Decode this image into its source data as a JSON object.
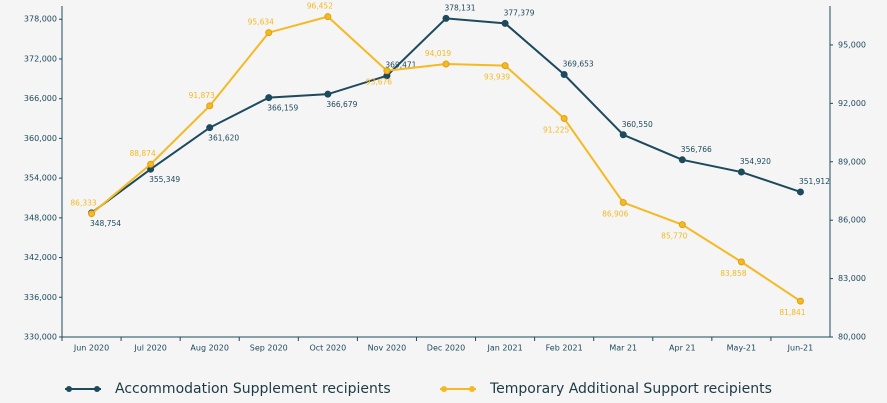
{
  "chart_data": {
    "type": "line",
    "categories": [
      "Jun 2020",
      "Jul 2020",
      "Aug 2020",
      "Sep 2020",
      "Oct 2020",
      "Nov 2020",
      "Dec 2020",
      "Jan 2021",
      "Feb 2021",
      "Mar 21",
      "Apr 21",
      "May-21",
      "Jun-21"
    ],
    "series": [
      {
        "name": "Accommodation Supplement recipients",
        "color": "#1d4a5c",
        "axis": "y",
        "values": [
          348754,
          355349,
          361620,
          366159,
          366679,
          369471,
          378131,
          377379,
          369653,
          360550,
          356766,
          354920,
          351912
        ],
        "value_labels": [
          "348,754",
          "355,349",
          "361,620",
          "366,159",
          "366,679",
          "369,471",
          "378,131",
          "377,379",
          "369,653",
          "360,550",
          "356,766",
          "354,920",
          "351,912"
        ]
      },
      {
        "name": "Temporary Additional Support recipients",
        "color": "#f5b922",
        "axis": "y2",
        "values": [
          86333,
          88874,
          91873,
          95634,
          96452,
          93676,
          94019,
          93939,
          91225,
          86906,
          85770,
          83858,
          81841
        ],
        "value_labels": [
          "86,333",
          "88,874",
          "91,873",
          "95,634",
          "96,452",
          "93,676",
          "94,019",
          "93,939",
          "91,225",
          "86,906",
          "85,770",
          "83,858",
          "81,841"
        ]
      }
    ],
    "ylim": [
      330000,
      380000
    ],
    "yticks": [
      {
        "value": 330000,
        "label": "330,000"
      },
      {
        "value": 336000,
        "label": "336,000"
      },
      {
        "value": 342000,
        "label": "342,000"
      },
      {
        "value": 348000,
        "label": "348,000"
      },
      {
        "value": 354000,
        "label": "354,000"
      },
      {
        "value": 360000,
        "label": "360,000"
      },
      {
        "value": 366000,
        "label": "366,000"
      },
      {
        "value": 372000,
        "label": "372,000"
      },
      {
        "value": 378000,
        "label": "378,000"
      }
    ],
    "y2lim": [
      80000,
      97000
    ],
    "y2ticks": [
      {
        "value": 80000,
        "label": "80,000"
      },
      {
        "value": 83000,
        "label": "83,000"
      },
      {
        "value": 86000,
        "label": "86,000"
      },
      {
        "value": 89000,
        "label": "89,000"
      },
      {
        "value": 92000,
        "label": "92,000"
      },
      {
        "value": 95000,
        "label": "95,000"
      }
    ]
  }
}
